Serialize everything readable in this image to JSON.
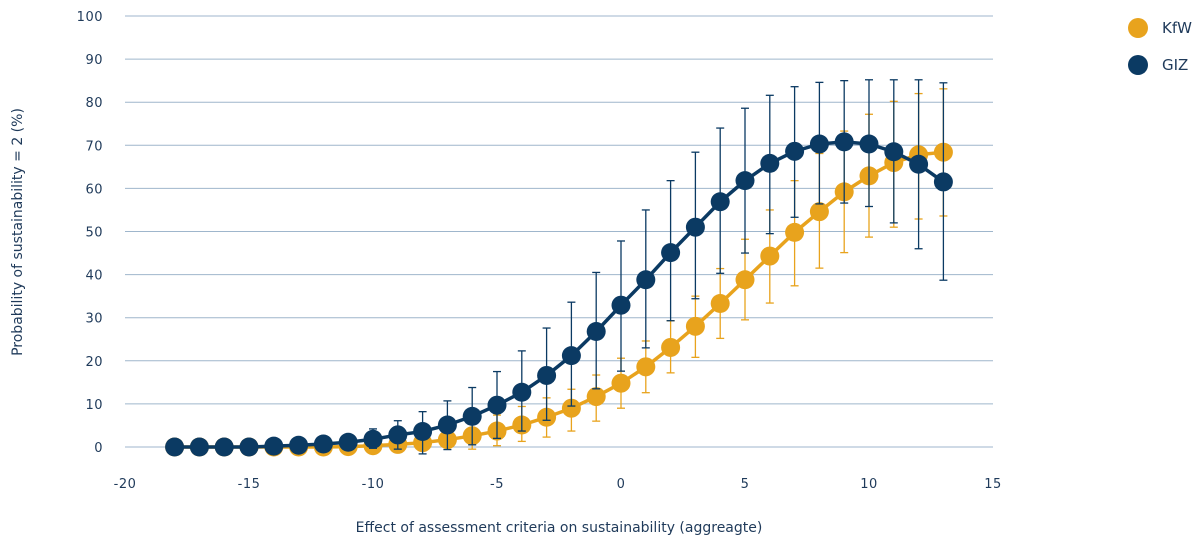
{
  "chart_data": {
    "type": "line",
    "title": "",
    "xlabel": "Effect of assessment criteria on sustainability (aggreagte)",
    "ylabel": "Probability of sustainability = 2 (%)",
    "xlim": [
      -20,
      15
    ],
    "ylim": [
      0,
      100
    ],
    "x_ticks": [
      -20,
      -15,
      -10,
      -5,
      0,
      5,
      10,
      15
    ],
    "y_ticks": [
      0,
      10,
      20,
      30,
      40,
      50,
      60,
      70,
      80,
      90,
      100
    ],
    "grid": "horizontal",
    "legend_position": "top-right",
    "series": [
      {
        "name": "KfW",
        "color": "#e8a31d",
        "x": [
          -18,
          -17,
          -16,
          -15,
          -14,
          -13,
          -12,
          -11,
          -10,
          -9,
          -8,
          -7,
          -6,
          -5,
          -4,
          -3,
          -2,
          -1,
          0,
          1,
          2,
          3,
          4,
          5,
          6,
          7,
          8,
          9,
          10,
          11,
          12,
          13
        ],
        "y": [
          0,
          0,
          0,
          0,
          0,
          0,
          0,
          0.1,
          0.3,
          0.6,
          1.0,
          1.7,
          2.6,
          3.7,
          5.1,
          6.9,
          9.0,
          11.7,
          14.8,
          18.6,
          23.1,
          28.0,
          33.3,
          38.8,
          44.3,
          49.8,
          54.6,
          59.2,
          62.9,
          66.0,
          67.8,
          68.4
        ],
        "ci_low": [
          0,
          0,
          0,
          0,
          0,
          0,
          0,
          0,
          0,
          0,
          0,
          0,
          -0.5,
          0.3,
          1.3,
          2.3,
          3.7,
          6.0,
          9.0,
          12.6,
          17.2,
          20.8,
          25.2,
          29.5,
          33.4,
          37.4,
          41.5,
          45.1,
          48.7,
          51.0,
          52.9,
          53.6
        ],
        "ci_high": [
          0,
          0,
          0,
          0,
          0,
          0,
          0,
          0.3,
          0.8,
          1.5,
          2.3,
          3.5,
          5.5,
          7.4,
          9.4,
          11.4,
          13.4,
          16.7,
          20.6,
          24.6,
          29.3,
          35.0,
          41.4,
          48.2,
          55.0,
          61.8,
          68.1,
          73.3,
          77.2,
          80.2,
          82.0,
          83.1
        ]
      },
      {
        "name": "GIZ",
        "color": "#0b3a63",
        "x": [
          -18,
          -17,
          -16,
          -15,
          -14,
          -13,
          -12,
          -11,
          -10,
          -9,
          -8,
          -7,
          -6,
          -5,
          -4,
          -3,
          -2,
          -1,
          0,
          1,
          2,
          3,
          4,
          5,
          6,
          7,
          8,
          9,
          10,
          11,
          12,
          13
        ],
        "y": [
          0,
          0,
          0,
          0,
          0.2,
          0.4,
          0.7,
          1.1,
          1.8,
          2.8,
          3.6,
          5.1,
          7.1,
          9.7,
          12.7,
          16.6,
          21.2,
          26.8,
          32.9,
          38.8,
          45.1,
          51.0,
          56.9,
          61.8,
          65.8,
          68.6,
          70.3,
          70.8,
          70.3,
          68.5,
          65.6,
          61.5
        ],
        "ci_low": [
          0,
          0,
          0,
          0,
          0,
          0,
          0,
          0,
          -0.3,
          -0.5,
          -1.6,
          -0.6,
          0.5,
          2.0,
          3.7,
          6.2,
          9.5,
          13.5,
          17.6,
          23.0,
          29.3,
          34.4,
          40.3,
          45.0,
          49.5,
          53.3,
          56.4,
          56.6,
          55.8,
          52.0,
          46.0,
          38.7
        ],
        "ci_high": [
          0,
          0,
          0,
          0,
          0.5,
          1.1,
          1.7,
          2.6,
          4.2,
          6.1,
          8.2,
          10.7,
          13.8,
          17.5,
          22.3,
          27.6,
          33.6,
          40.5,
          47.8,
          55.0,
          61.8,
          68.4,
          74.0,
          78.6,
          81.6,
          83.6,
          84.6,
          85.0,
          85.2,
          85.2,
          85.2,
          84.5
        ]
      }
    ]
  }
}
